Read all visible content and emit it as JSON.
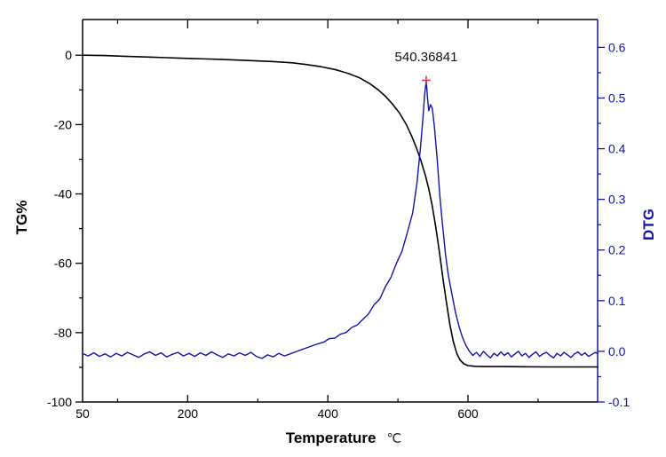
{
  "chart_data": {
    "type": "line",
    "title": "",
    "legend": "none",
    "grid": false,
    "x_axis": {
      "label": "Temperature",
      "unit": "℃",
      "range": [
        50,
        785
      ],
      "majors": [
        {
          "v": 200,
          "label": "200"
        },
        {
          "v": 400,
          "label": "400"
        },
        {
          "v": 600,
          "label": "600"
        }
      ],
      "minors": [
        100,
        300,
        500,
        700
      ],
      "extra_labels": [
        {
          "v": 50,
          "label": "50"
        }
      ],
      "color": "#000000"
    },
    "y_left": {
      "label": "TG%",
      "range": [
        -100,
        10.3
      ],
      "majors": [
        {
          "v": 0,
          "label": "0"
        },
        {
          "v": -20,
          "label": "-20"
        },
        {
          "v": -40,
          "label": "-40"
        },
        {
          "v": -60,
          "label": "-60"
        },
        {
          "v": -80,
          "label": "-80"
        },
        {
          "v": -100,
          "label": "-100"
        }
      ],
      "minors": [
        -10,
        -30,
        -50,
        -70,
        -90
      ],
      "color": "#000000"
    },
    "y_right": {
      "label": "DTG",
      "range": [
        -0.1,
        0.655
      ],
      "majors": [
        {
          "v": 0.6,
          "label": "0.6"
        },
        {
          "v": 0.5,
          "label": "0.5"
        },
        {
          "v": 0.4,
          "label": "0.4"
        },
        {
          "v": 0.3,
          "label": "0.3"
        },
        {
          "v": 0.2,
          "label": "0.2"
        },
        {
          "v": 0.1,
          "label": "0.1"
        },
        {
          "v": 0.0,
          "label": "0.0"
        },
        {
          "v": -0.1,
          "label": "-0.1"
        }
      ],
      "minors": [
        0.55,
        0.45,
        0.35,
        0.25,
        0.15,
        0.05,
        -0.05
      ],
      "color": "#1414ad"
    },
    "annotation": {
      "label": "540.36841",
      "x": 540.37,
      "y": 0.535,
      "axis": "right",
      "marker": "plus",
      "marker_color": "#cc4040",
      "text_color": "#111111"
    },
    "series": [
      {
        "name": "TG",
        "axis": "left",
        "color": "#000000",
        "width": 1.6,
        "points": [
          [
            50,
            0
          ],
          [
            80,
            -0.1
          ],
          [
            110,
            -0.3
          ],
          [
            140,
            -0.5
          ],
          [
            170,
            -0.7
          ],
          [
            200,
            -0.9
          ],
          [
            230,
            -1.1
          ],
          [
            260,
            -1.3
          ],
          [
            290,
            -1.55
          ],
          [
            320,
            -1.8
          ],
          [
            350,
            -2.2
          ],
          [
            370,
            -2.7
          ],
          [
            390,
            -3.3
          ],
          [
            410,
            -4.1
          ],
          [
            430,
            -5.3
          ],
          [
            445,
            -6.5
          ],
          [
            460,
            -8.2
          ],
          [
            472,
            -10
          ],
          [
            482,
            -11.8
          ],
          [
            492,
            -14
          ],
          [
            502,
            -16.6
          ],
          [
            512,
            -20
          ],
          [
            520,
            -23.5
          ],
          [
            527,
            -27
          ],
          [
            533,
            -30.5
          ],
          [
            539,
            -34.5
          ],
          [
            544,
            -38.5
          ],
          [
            549,
            -43.5
          ],
          [
            554,
            -49.5
          ],
          [
            559,
            -56.5
          ],
          [
            564,
            -64
          ],
          [
            569,
            -71
          ],
          [
            574,
            -77.5
          ],
          [
            579,
            -82.5
          ],
          [
            584,
            -86
          ],
          [
            589,
            -88
          ],
          [
            594,
            -89
          ],
          [
            600,
            -89.5
          ],
          [
            610,
            -89.7
          ],
          [
            625,
            -89.8
          ],
          [
            650,
            -89.8
          ],
          [
            680,
            -89.85
          ],
          [
            710,
            -89.9
          ],
          [
            740,
            -89.9
          ],
          [
            785,
            -89.9
          ]
        ]
      },
      {
        "name": "DTG",
        "axis": "right",
        "color": "#1414ad",
        "width": 1.4,
        "points": [
          [
            50,
            -0.004
          ],
          [
            58,
            -0.009
          ],
          [
            66,
            -0.003
          ],
          [
            74,
            -0.01
          ],
          [
            82,
            -0.005
          ],
          [
            90,
            -0.011
          ],
          [
            98,
            -0.004
          ],
          [
            106,
            -0.009
          ],
          [
            114,
            -0.002
          ],
          [
            122,
            -0.007
          ],
          [
            130,
            -0.012
          ],
          [
            138,
            -0.005
          ],
          [
            146,
            -0.001
          ],
          [
            154,
            -0.008
          ],
          [
            162,
            -0.003
          ],
          [
            170,
            -0.011
          ],
          [
            178,
            -0.006
          ],
          [
            186,
            -0.002
          ],
          [
            194,
            -0.009
          ],
          [
            202,
            -0.004
          ],
          [
            210,
            -0.01
          ],
          [
            218,
            -0.003
          ],
          [
            226,
            -0.008
          ],
          [
            234,
            -0.001
          ],
          [
            242,
            -0.007
          ],
          [
            250,
            -0.012
          ],
          [
            258,
            -0.005
          ],
          [
            266,
            -0.009
          ],
          [
            274,
            -0.003
          ],
          [
            282,
            -0.008
          ],
          [
            290,
            -0.002
          ],
          [
            298,
            -0.01
          ],
          [
            306,
            -0.014
          ],
          [
            314,
            -0.007
          ],
          [
            322,
            -0.011
          ],
          [
            330,
            -0.004
          ],
          [
            338,
            -0.009
          ],
          [
            346,
            -0.005
          ],
          [
            354,
            -0.001
          ],
          [
            362,
            0.003
          ],
          [
            370,
            0.007
          ],
          [
            378,
            0.011
          ],
          [
            386,
            0.015
          ],
          [
            394,
            0.018
          ],
          [
            402,
            0.025
          ],
          [
            410,
            0.026
          ],
          [
            418,
            0.034
          ],
          [
            426,
            0.037
          ],
          [
            434,
            0.047
          ],
          [
            442,
            0.052
          ],
          [
            450,
            0.063
          ],
          [
            458,
            0.074
          ],
          [
            466,
            0.092
          ],
          [
            474,
            0.103
          ],
          [
            482,
            0.127
          ],
          [
            490,
            0.146
          ],
          [
            498,
            0.174
          ],
          [
            506,
            0.198
          ],
          [
            514,
            0.237
          ],
          [
            521,
            0.273
          ],
          [
            527,
            0.33
          ],
          [
            532,
            0.4
          ],
          [
            536,
            0.465
          ],
          [
            538,
            0.505
          ],
          [
            540.4,
            0.535
          ],
          [
            542,
            0.505
          ],
          [
            544,
            0.475
          ],
          [
            546.5,
            0.487
          ],
          [
            549,
            0.48
          ],
          [
            552,
            0.445
          ],
          [
            556,
            0.38
          ],
          [
            560,
            0.305
          ],
          [
            564,
            0.245
          ],
          [
            568,
            0.19
          ],
          [
            572,
            0.15
          ],
          [
            577,
            0.113
          ],
          [
            582,
            0.078
          ],
          [
            587,
            0.05
          ],
          [
            592,
            0.028
          ],
          [
            597,
            0.012
          ],
          [
            602,
            0
          ],
          [
            607,
            -0.008
          ],
          [
            612,
            -0.002
          ],
          [
            617,
            -0.01
          ],
          [
            622,
            0
          ],
          [
            627,
            -0.007
          ],
          [
            632,
            -0.013
          ],
          [
            637,
            -0.004
          ],
          [
            642,
            -0.009
          ],
          [
            647,
            -0.001
          ],
          [
            652,
            -0.008
          ],
          [
            657,
            -0.003
          ],
          [
            662,
            -0.011
          ],
          [
            667,
            -0.005
          ],
          [
            672,
            0
          ],
          [
            677,
            -0.009
          ],
          [
            682,
            -0.004
          ],
          [
            687,
            -0.012
          ],
          [
            692,
            -0.006
          ],
          [
            697,
            -0.001
          ],
          [
            702,
            -0.01
          ],
          [
            707,
            -0.005
          ],
          [
            712,
            -0.002
          ],
          [
            717,
            -0.008
          ],
          [
            722,
            -0.013
          ],
          [
            727,
            -0.004
          ],
          [
            732,
            -0.009
          ],
          [
            737,
            -0.002
          ],
          [
            742,
            -0.007
          ],
          [
            747,
            -0.012
          ],
          [
            752,
            -0.005
          ],
          [
            757,
            -0.001
          ],
          [
            762,
            -0.008
          ],
          [
            767,
            -0.003
          ],
          [
            772,
            -0.01
          ],
          [
            777,
            -0.006
          ],
          [
            782,
            -0.002
          ],
          [
            785,
            -0.005
          ]
        ]
      }
    ]
  }
}
